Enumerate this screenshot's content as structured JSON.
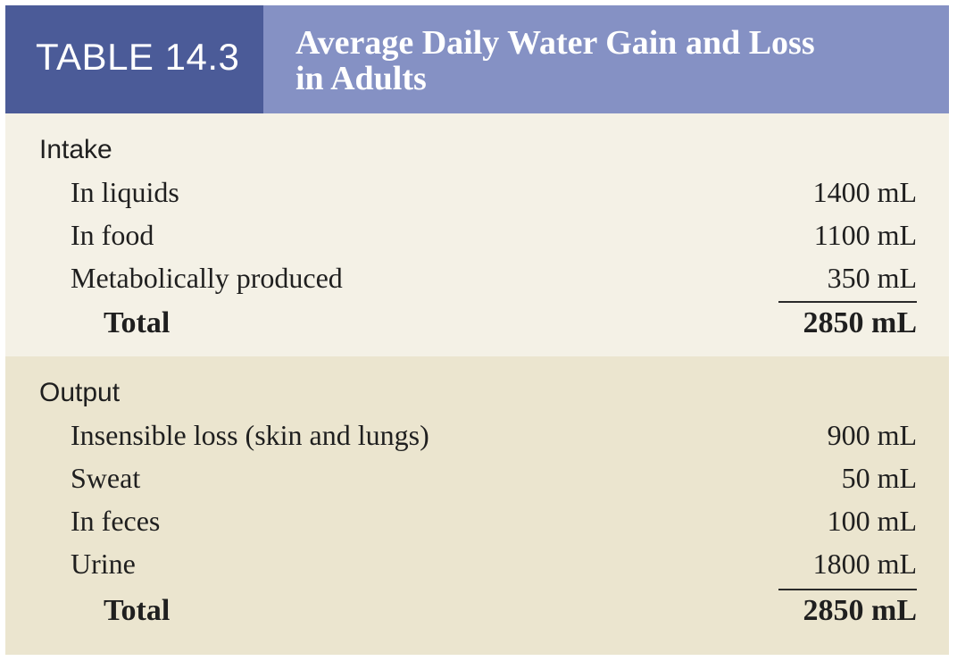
{
  "table": {
    "label": "TABLE 14.3",
    "title_line1": "Average Daily Water Gain and Loss",
    "title_line2": "in Adults"
  },
  "intake": {
    "heading": "Intake",
    "rows": [
      {
        "label": "In liquids",
        "value": "1400 mL"
      },
      {
        "label": "In food",
        "value": "1100 mL"
      },
      {
        "label": "Metabolically produced",
        "value": "350 mL"
      }
    ],
    "total_label": "Total",
    "total_value": "2850 mL"
  },
  "output": {
    "heading": "Output",
    "rows": [
      {
        "label": "Insensible loss (skin and lungs)",
        "value": "900 mL"
      },
      {
        "label": "Sweat",
        "value": "50 mL"
      },
      {
        "label": "In feces",
        "value": "100 mL"
      },
      {
        "label": "Urine",
        "value": "1800 mL"
      }
    ],
    "total_label": "Total",
    "total_value": "2850 mL"
  },
  "colors": {
    "label_bg": "#4b5b98",
    "title_bg": "#8591c4",
    "intake_bg": "#f4f1e6",
    "output_bg": "#ebe5cf"
  }
}
